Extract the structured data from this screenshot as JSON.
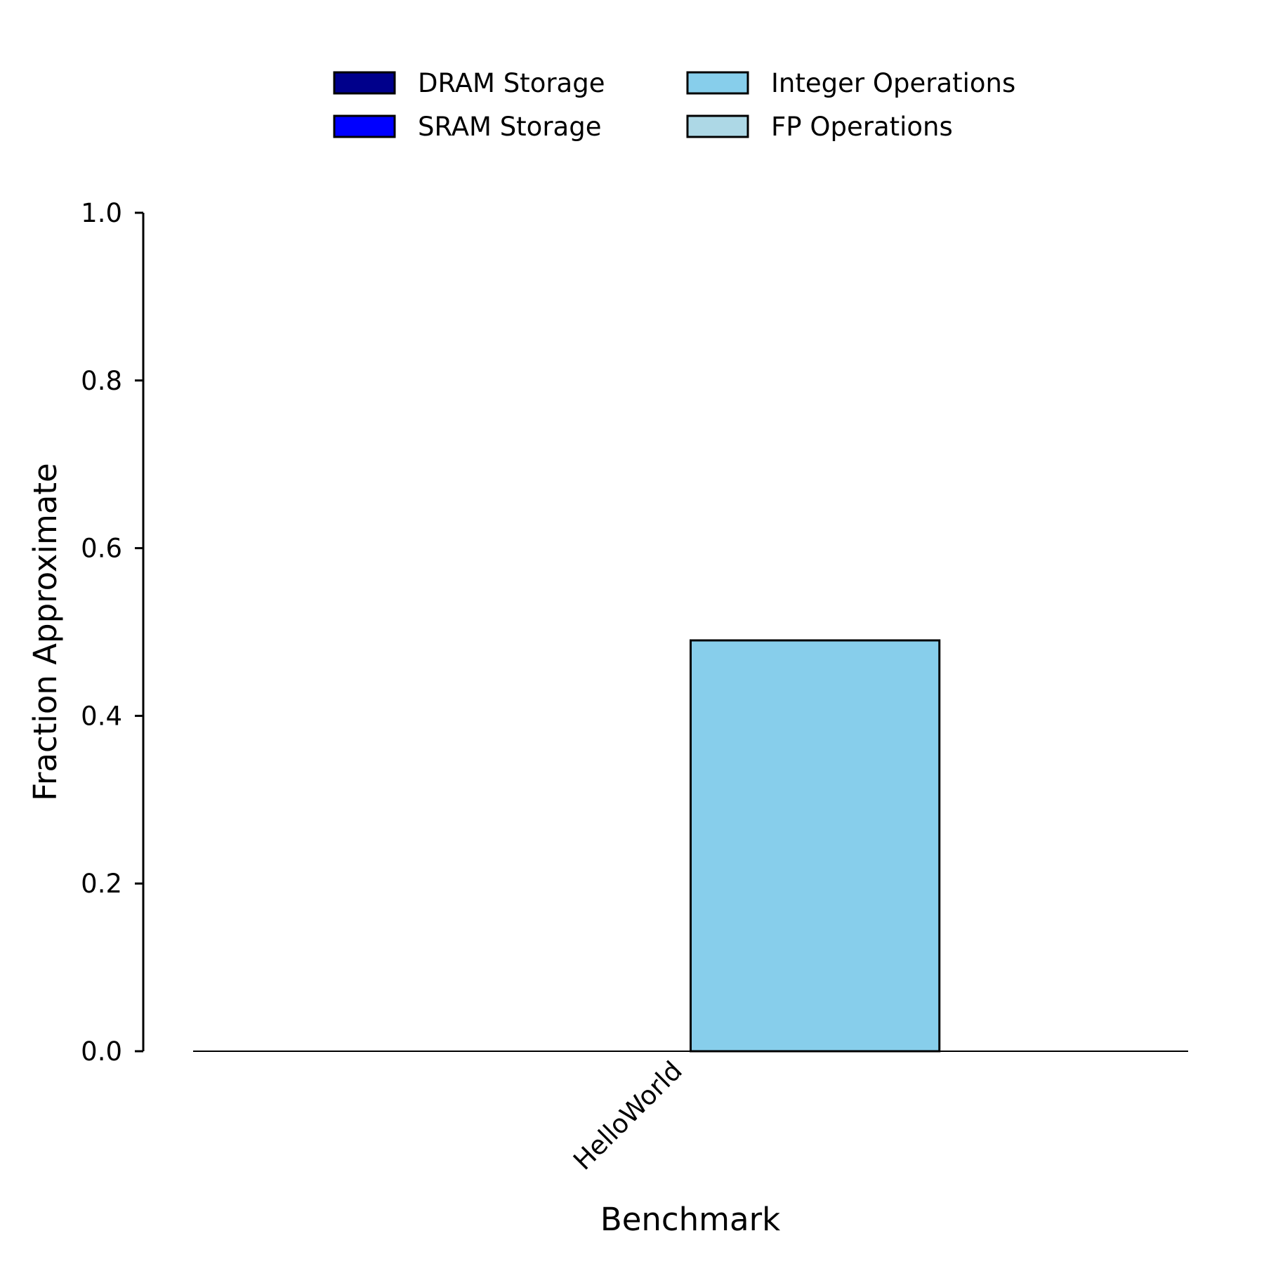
{
  "chart_data": {
    "type": "bar",
    "stacked": true,
    "title": "",
    "xlabel": "Benchmark",
    "ylabel": "Fraction Approximate",
    "categories": [
      "HelloWorld"
    ],
    "ylim": [
      0,
      1.0
    ],
    "yticks": [
      "0.0",
      "0.2",
      "0.4",
      "0.6",
      "0.8",
      "1.0"
    ],
    "grid": false,
    "legend_position": "top-center",
    "series": [
      {
        "name": "DRAM Storage",
        "color": "#00008b",
        "values": [
          0.0
        ]
      },
      {
        "name": "SRAM Storage",
        "color": "#0000ff",
        "values": [
          0.0
        ]
      },
      {
        "name": "Integer Operations",
        "color": "#87ceeb",
        "values": [
          0.49
        ]
      },
      {
        "name": "FP Operations",
        "color": "#add8e6",
        "values": [
          0.0
        ]
      }
    ]
  }
}
